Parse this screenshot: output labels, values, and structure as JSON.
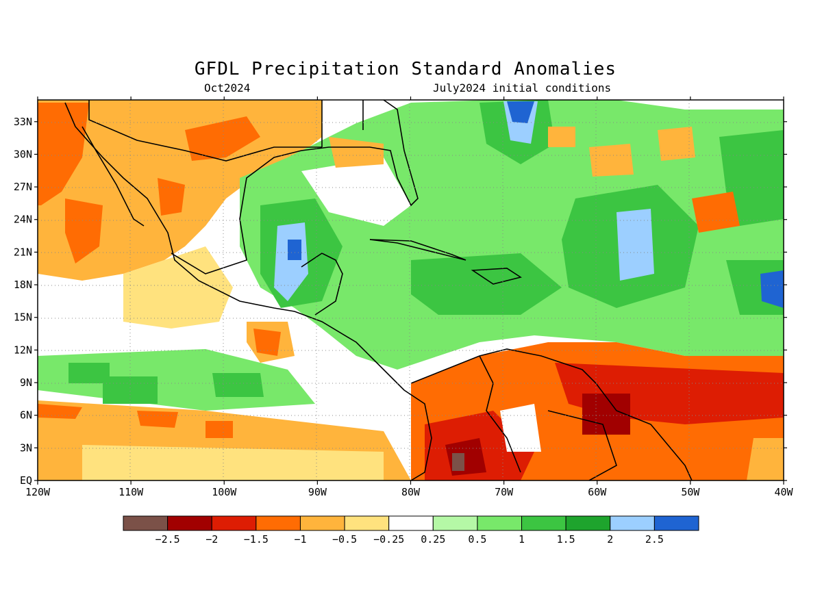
{
  "title": "GFDL Precipitation Standard Anomalies",
  "subtitle_left": "Oct2024",
  "subtitle_right": "July2024 initial conditions",
  "axes": {
    "lon_labels": [
      "120W",
      "110W",
      "100W",
      "90W",
      "80W",
      "70W",
      "60W",
      "50W",
      "40W"
    ],
    "lat_labels": [
      "EQ",
      "3N",
      "6N",
      "9N",
      "12N",
      "15N",
      "18N",
      "21N",
      "24N",
      "27N",
      "30N",
      "33N"
    ],
    "lon_range": [
      -120,
      -40
    ],
    "lat_range": [
      0,
      35
    ],
    "grid": "dotted"
  },
  "colorbar": {
    "labels": [
      "-2.5",
      "-2",
      "-1.5",
      "-1",
      "-0.5",
      "-0.25",
      "0.25",
      "0.5",
      "1",
      "1.5",
      "2",
      "2.5"
    ],
    "colors": [
      "#7b5148",
      "#a10000",
      "#dd1d03",
      "#ff6c03",
      "#ffb43c",
      "#ffe27e",
      "#ffffff",
      "#b5f8a6",
      "#78e86a",
      "#3cc542",
      "#1ea42d",
      "#9ccfff",
      "#1f64d2"
    ]
  }
}
